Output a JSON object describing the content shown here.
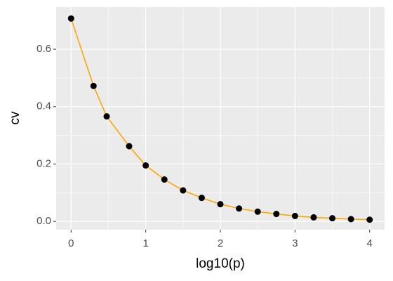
{
  "chart_data": {
    "type": "line",
    "x_label": "log10(p)",
    "y_label": "cv",
    "x": [
      0,
      0.301,
      0.477,
      0.778,
      1,
      1.25,
      1.5,
      1.75,
      2,
      2.25,
      2.5,
      2.75,
      3,
      3.25,
      3.5,
      3.75,
      4
    ],
    "series": [
      {
        "color": "#FFA500",
        "marker_color": "#000000",
        "values": [
          0.707,
          0.472,
          0.366,
          0.262,
          0.195,
          0.146,
          0.108,
          0.082,
          0.06,
          0.045,
          0.034,
          0.026,
          0.019,
          0.014,
          0.011,
          0.008,
          0.006
        ]
      }
    ],
    "xlim": [
      -0.2,
      4.2
    ],
    "xticks": [
      0,
      1,
      2,
      3,
      4
    ],
    "ylim": [
      -0.029,
      0.747
    ],
    "yticks": [
      {
        "value": 0,
        "label": "0.0"
      },
      0.2,
      0.4,
      0.6
    ],
    "grid": true
  }
}
